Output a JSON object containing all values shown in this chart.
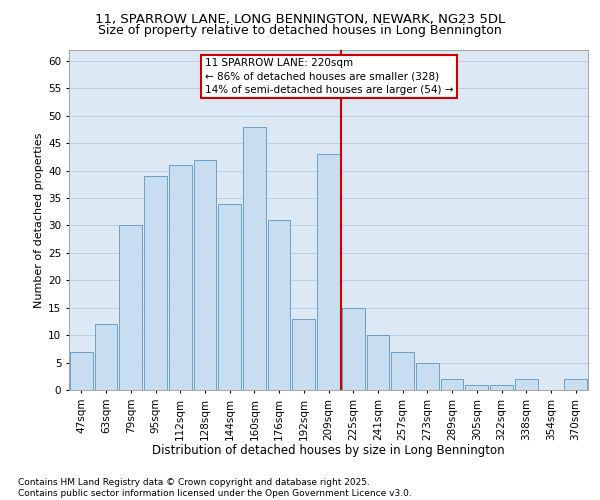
{
  "title1": "11, SPARROW LANE, LONG BENNINGTON, NEWARK, NG23 5DL",
  "title2": "Size of property relative to detached houses in Long Bennington",
  "xlabel": "Distribution of detached houses by size in Long Bennington",
  "ylabel": "Number of detached properties",
  "categories": [
    "47sqm",
    "63sqm",
    "79sqm",
    "95sqm",
    "112sqm",
    "128sqm",
    "144sqm",
    "160sqm",
    "176sqm",
    "192sqm",
    "209sqm",
    "225sqm",
    "241sqm",
    "257sqm",
    "273sqm",
    "289sqm",
    "305sqm",
    "322sqm",
    "338sqm",
    "354sqm",
    "370sqm"
  ],
  "values": [
    7,
    12,
    30,
    39,
    41,
    42,
    34,
    48,
    31,
    13,
    43,
    15,
    10,
    7,
    5,
    2,
    1,
    1,
    2,
    0,
    2
  ],
  "bar_color": "#c9ddf0",
  "bar_edge_color": "#6a9fc8",
  "grid_color": "#b8cfe0",
  "background_color": "#dce9f5",
  "ref_line_color": "#cc0000",
  "annotation_text": "11 SPARROW LANE: 220sqm\n← 86% of detached houses are smaller (328)\n14% of semi-detached houses are larger (54) →",
  "annotation_box_color": "#cc0000",
  "ylim": [
    0,
    62
  ],
  "yticks": [
    0,
    5,
    10,
    15,
    20,
    25,
    30,
    35,
    40,
    45,
    50,
    55,
    60
  ],
  "footnote": "Contains HM Land Registry data © Crown copyright and database right 2025.\nContains public sector information licensed under the Open Government Licence v3.0.",
  "title1_fontsize": 9.5,
  "title2_fontsize": 9,
  "xlabel_fontsize": 8.5,
  "ylabel_fontsize": 8,
  "tick_fontsize": 7.5,
  "annot_fontsize": 7.5,
  "footnote_fontsize": 6.5
}
